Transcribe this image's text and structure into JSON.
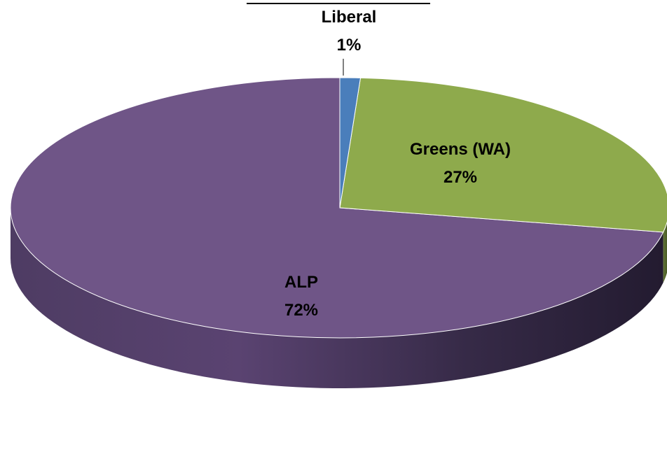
{
  "chart_data": {
    "type": "pie",
    "style": "3d",
    "categories": [
      "Liberal",
      "Greens (WA)",
      "ALP"
    ],
    "values": [
      1,
      27,
      72
    ],
    "labels": [
      "1%",
      "27%",
      "72%"
    ],
    "colors": [
      "#4a7ebb",
      "#8eaa4c",
      "#6f5587"
    ]
  }
}
